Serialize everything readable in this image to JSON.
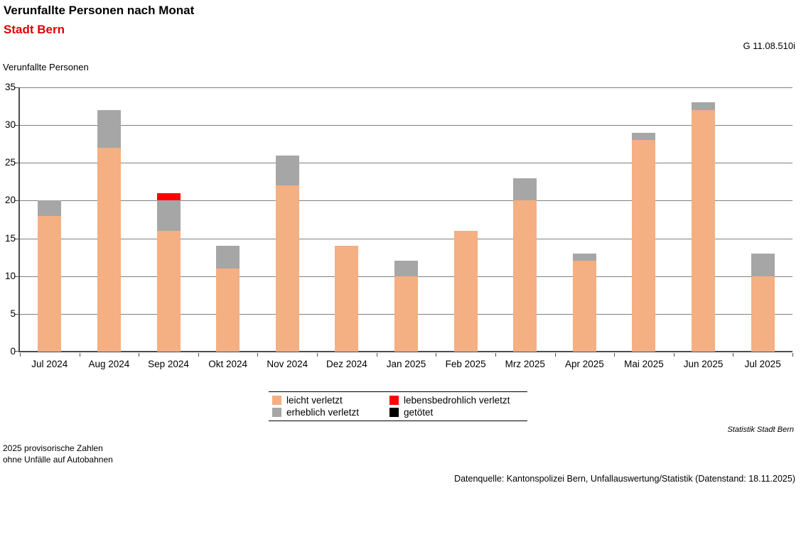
{
  "header": {
    "title": "Verunfallte Personen nach Monat",
    "subtitle": "Stadt Bern",
    "graph_id": "G 11.08.510i"
  },
  "chart_data": {
    "type": "bar",
    "stacked": true,
    "title": "Verunfallte Personen nach Monat",
    "y_axis_title": "Verunfallte Personen",
    "ylim": [
      0,
      35
    ],
    "yticks": [
      0,
      5,
      10,
      15,
      20,
      25,
      30,
      35
    ],
    "grid": true,
    "legend_position": "bottom",
    "categories": [
      "Jul 2024",
      "Aug 2024",
      "Sep 2024",
      "Okt 2024",
      "Nov 2024",
      "Dez 2024",
      "Jan 2025",
      "Feb 2025",
      "Mrz 2025",
      "Apr 2025",
      "Mai 2025",
      "Jun 2025",
      "Jul 2025"
    ],
    "series": [
      {
        "name": "leicht verletzt",
        "color": "#F4AF82",
        "values": [
          18,
          27,
          16,
          11,
          22,
          14,
          10,
          16,
          20,
          12,
          28,
          32,
          10
        ]
      },
      {
        "name": "erheblich verletzt",
        "color": "#A6A6A6",
        "values": [
          2,
          5,
          4,
          3,
          4,
          0,
          2,
          0,
          3,
          1,
          1,
          1,
          3
        ]
      },
      {
        "name": "lebensbedrohlich verletzt",
        "color": "#FF0000",
        "values": [
          0,
          0,
          1,
          0,
          0,
          0,
          0,
          0,
          0,
          0,
          0,
          0,
          0
        ]
      },
      {
        "name": "getötet",
        "color": "#000000",
        "values": [
          0,
          0,
          0,
          0,
          0,
          0,
          0,
          0,
          0,
          0,
          0,
          0,
          0
        ]
      }
    ],
    "totals": [
      20,
      32,
      21,
      14,
      26,
      14,
      12,
      16,
      23,
      13,
      29,
      33,
      13
    ]
  },
  "colors": {
    "subtitle_red": "#e00000",
    "gridline": "#7f7f7f",
    "axis": "#4d4d4d"
  },
  "footnotes": {
    "line1": "2025 provisorische Zahlen",
    "line2": "ohne Unfälle auf Autobahnen",
    "brand": "Statistik Stadt Bern",
    "source": "Datenquelle: Kantonspolizei Bern, Unfallauswertung/Statistik (Datenstand: 18.11.2025)"
  }
}
